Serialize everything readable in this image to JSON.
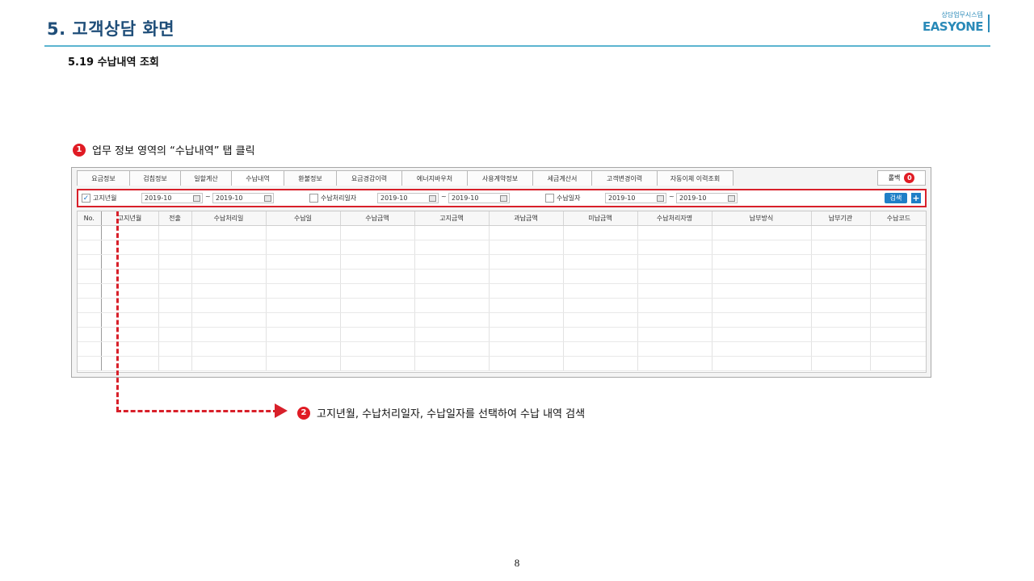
{
  "slide": {
    "title": "5. 고객상담 화면",
    "subtitle": "5.19 수납내역 조회",
    "brand_sub": "상담업무시스템",
    "brand_name": "EASYONE",
    "page_number": "8"
  },
  "steps": [
    {
      "num": "1",
      "text": "업무 정보 영역의 “수납내역” 탭 클릭"
    },
    {
      "num": "2",
      "text": "고지년월, 수납처리일자, 수납일자를 선택하여 수납 내역 검색"
    }
  ],
  "tabs": [
    {
      "label": "요금정보",
      "active": false
    },
    {
      "label": "검침정보",
      "active": false
    },
    {
      "label": "일할계산",
      "active": false
    },
    {
      "label": "수납내역",
      "active": true
    },
    {
      "label": "환불정보",
      "active": false
    },
    {
      "label": "요금경감이력",
      "active": false
    },
    {
      "label": "에너지바우처",
      "active": false
    },
    {
      "label": "사용계약정보",
      "active": false
    },
    {
      "label": "세금계산서",
      "active": false
    },
    {
      "label": "고객변경이력",
      "active": false
    },
    {
      "label": "자동이체 이력조회",
      "active": false
    }
  ],
  "rollback": {
    "label": "롤백",
    "count": "0"
  },
  "filter": {
    "billing_month": {
      "label": "고지년월",
      "checked": true,
      "from": "2019-10",
      "to": "2019-10"
    },
    "process_date": {
      "label": "수납처리일자",
      "checked": false,
      "from": "2019-10",
      "to": "2019-10"
    },
    "payment_date": {
      "label": "수납일자",
      "checked": false,
      "from": "2019-10",
      "to": "2019-10"
    },
    "tilde": "~",
    "search_label": "검색",
    "plus_label": "+"
  },
  "grid": {
    "columns": [
      "No.",
      "고지년월",
      "전출",
      "수납처리일",
      "수납일",
      "수납금액",
      "고지금액",
      "과납금액",
      "미납금액",
      "수납처리자명",
      "납부방식",
      "납부기관",
      "수납코드"
    ]
  },
  "colors": {
    "accent_red": "#d8202a",
    "brand_blue": "#2a8ab8",
    "title_navy": "#1f4e79",
    "button_blue": "#1f7fc7"
  }
}
